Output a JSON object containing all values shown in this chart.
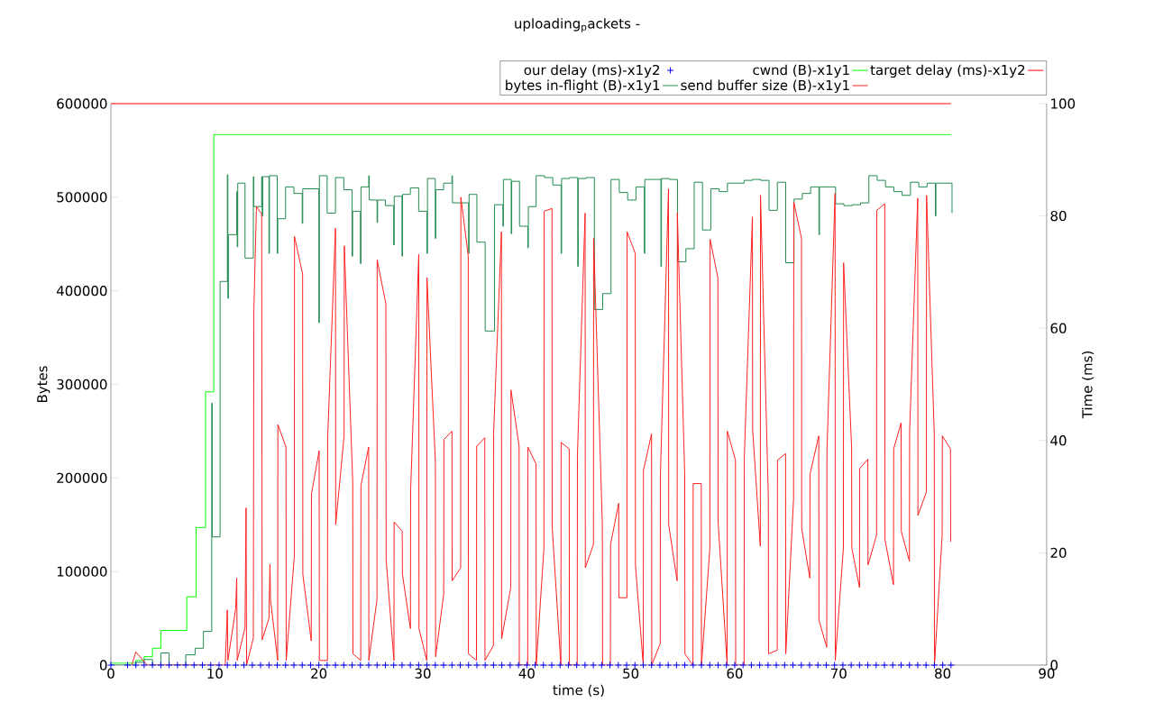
{
  "chart_data": {
    "type": "line",
    "title": "uploading$_{p}$ackets -",
    "xlabel": "time (s)",
    "ylabel": "Bytes",
    "y2label": "Time (ms)",
    "xlim": [
      0,
      90
    ],
    "xticks": [
      0,
      10,
      20,
      30,
      40,
      50,
      60,
      70,
      80,
      90
    ],
    "ylim": [
      0,
      600000
    ],
    "yticks": [
      0,
      100000,
      200000,
      300000,
      400000,
      500000,
      600000
    ],
    "y2lim": [
      0,
      100
    ],
    "y2ticks": [
      0,
      20,
      40,
      60,
      80,
      100
    ],
    "legend": "top right",
    "series": [
      {
        "name": "our delay (ms)-x1y2",
        "type": "scatter",
        "axis": "y2",
        "marker": "cross",
        "color": "#0000ff",
        "x": [
          0,
          1.6,
          2.4,
          3.2,
          4,
          4.8,
          5.6,
          6.4,
          7.2,
          8,
          8.8,
          9.6,
          10.4,
          11.2,
          12,
          12.8,
          13.6,
          14.4,
          15.2,
          16,
          16.8,
          17.6,
          18.4,
          19.2,
          20,
          20.8,
          21.6,
          22.4,
          23.2,
          24,
          24.8,
          25.6,
          26.4,
          27.2,
          28,
          28.8,
          29.6,
          30.4,
          31.2,
          32,
          32.8,
          33.6,
          34.4,
          35.2,
          36,
          36.8,
          37.6,
          38.4,
          39.2,
          40,
          40.8,
          41.6,
          42.4,
          43.2,
          44,
          44.8,
          45.6,
          46.4,
          47.2,
          48,
          48.8,
          49.6,
          50.4,
          51.2,
          52,
          52.8,
          53.6,
          54.4,
          55.2,
          56,
          56.8,
          57.6,
          58.4,
          59.2,
          60,
          60.8,
          61.6,
          62.4,
          63.2,
          64,
          64.8,
          65.6,
          66.4,
          67.2,
          68,
          68.8,
          69.6,
          70.4,
          71.2,
          72,
          72.8,
          73.6,
          74.4,
          75.2,
          76,
          76.8,
          77.6,
          78.4,
          79.2,
          80,
          80.8
        ],
        "values": [
          0,
          0,
          0,
          0,
          0,
          0,
          0,
          0,
          0,
          0,
          0,
          0,
          0,
          0,
          0,
          0,
          0,
          0,
          0,
          0,
          0,
          0,
          0,
          0,
          0,
          0,
          0,
          0,
          0,
          0,
          0,
          0,
          0,
          0,
          0,
          0,
          0,
          0,
          0,
          0,
          0,
          0,
          0,
          0,
          0,
          0,
          0,
          0,
          0,
          0,
          0,
          0,
          0,
          0,
          0,
          0,
          0,
          0,
          0,
          0,
          0,
          0,
          0,
          0,
          0,
          0,
          0,
          0,
          0,
          0,
          0,
          0,
          0,
          0,
          0,
          0,
          0,
          0,
          0,
          0,
          0,
          0,
          0,
          0,
          0,
          0,
          0,
          0,
          0,
          0,
          0,
          0,
          0,
          0,
          0,
          0,
          0,
          0,
          0,
          0,
          0
        ]
      },
      {
        "name": "cwnd (B)-x1y1",
        "type": "step",
        "color": "#00ff00",
        "x": [
          0,
          2.4,
          3.2,
          4.0,
          4.8,
          7.3,
          8.2,
          9.1,
          9.9,
          80.8
        ],
        "values": [
          2000,
          5000,
          9000,
          18000,
          37000,
          73000,
          147000,
          292000,
          567000,
          567000
        ]
      },
      {
        "name": "target delay (ms)-x1y2",
        "type": "line",
        "axis": "y2",
        "color": "#ff0000",
        "x": [
          0,
          80.8
        ],
        "values": [
          100,
          100
        ]
      },
      {
        "name": "bytes in-flight (B)-x1y1",
        "type": "step",
        "color": "#228b50",
        "x": [
          0,
          2.4,
          3.2,
          4.0,
          4.8,
          5.6,
          7.2,
          8.1,
          8.9,
          9.7,
          9.75,
          10.5,
          11.2,
          11.25,
          11.3,
          12.1,
          12.15,
          12.2,
          12.9,
          13.7,
          13.75,
          14.5,
          14.55,
          14.6,
          15.2,
          15.25,
          16.0,
          16.05,
          16.8,
          17.6,
          18.4,
          18.45,
          20.0,
          20.05,
          20.8,
          21.6,
          22.4,
          23.2,
          23.25,
          24.0,
          24.05,
          24.8,
          24.85,
          25.6,
          25.65,
          26.4,
          27.2,
          27.25,
          28.0,
          28.05,
          28.8,
          29.6,
          30.4,
          30.45,
          31.2,
          31.25,
          32.0,
          32.8,
          32.85,
          34.4,
          34.45,
          35.2,
          36.0,
          36.9,
          37.7,
          37.75,
          38.5,
          38.55,
          39.3,
          40.1,
          40.15,
          40.9,
          41.7,
          42.5,
          43.3,
          43.35,
          44.1,
          44.9,
          44.95,
          45.7,
          46.5,
          47.3,
          48.1,
          48.9,
          49.7,
          50.5,
          51.3,
          51.35,
          52.1,
          52.9,
          52.95,
          53.7,
          54.5,
          55.3,
          56.1,
          56.9,
          57.7,
          58.5,
          59.3,
          60.1,
          60.9,
          61.7,
          62.5,
          63.3,
          64.1,
          64.9,
          65.7,
          66.5,
          67.3,
          68.1,
          68.15,
          69.7,
          70.5,
          71.3,
          72.1,
          72.9,
          73.7,
          74.5,
          75.3,
          76.1,
          76.9,
          77.7,
          78.5,
          79.3,
          79.35,
          80.1,
          80.9
        ],
        "values": [
          0,
          3000,
          6000,
          0,
          13000,
          0,
          11000,
          18000,
          36000,
          280000,
          137000,
          410000,
          524000,
          392000,
          460000,
          506000,
          447000,
          515000,
          435000,
          522000,
          490000,
          522000,
          480000,
          522000,
          440000,
          523000,
          440000,
          477000,
          511000,
          504000,
          472000,
          509000,
          366000,
          523000,
          483000,
          521000,
          508000,
          437000,
          485000,
          429000,
          511000,
          523000,
          497000,
          473000,
          497000,
          491000,
          449000,
          501000,
          437000,
          503000,
          510000,
          485000,
          440000,
          520000,
          456000,
          508000,
          515000,
          523000,
          494000,
          440000,
          503000,
          452000,
          357000,
          492000,
          469000,
          519000,
          461000,
          517000,
          469000,
          446000,
          490000,
          523000,
          521000,
          513000,
          440000,
          520000,
          521000,
          426000,
          520000,
          521000,
          380000,
          397000,
          519000,
          505000,
          497000,
          511000,
          440000,
          519000,
          519000,
          426000,
          520000,
          519000,
          431000,
          445000,
          516000,
          465000,
          509000,
          506000,
          515000,
          515000,
          518000,
          519000,
          518000,
          486000,
          516000,
          430000,
          498000,
          504000,
          511000,
          460000,
          511000,
          493000,
          491000,
          492000,
          494000,
          523000,
          518000,
          511000,
          506000,
          502000,
          516000,
          511000,
          515000,
          480000,
          515000,
          515000,
          483000
        ]
      },
      {
        "name": "send buffer size (B)-x1y1",
        "type": "line",
        "color": "#ff2020",
        "x": [
          2.0,
          2.4,
          3.5,
          11.0,
          11.2,
          11.25,
          12.0,
          12.1,
          12.15,
          12.9,
          13.0,
          13.05,
          13.7,
          13.75,
          14.0,
          14.5,
          14.55,
          15.2,
          15.3,
          15.35,
          16.04,
          16.06,
          16.84,
          16.86,
          17.64,
          17.66,
          18.44,
          18.46,
          19.27,
          19.29,
          20.03,
          20.05,
          20.83,
          20.85,
          21.6,
          21.62,
          22.43,
          22.45,
          23.26,
          23.28,
          24.03,
          24.05,
          24.79,
          24.81,
          25.59,
          25.61,
          26.45,
          26.47,
          27.22,
          27.24,
          28.02,
          28.04,
          28.81,
          28.83,
          29.61,
          29.63,
          30.38,
          30.4,
          31.21,
          31.23,
          32.01,
          32.03,
          32.8,
          32.82,
          33.64,
          33.66,
          34.37,
          34.39,
          35.16,
          35.18,
          35.96,
          35.98,
          36.79,
          36.81,
          37.56,
          37.58,
          38.46,
          38.48,
          39.26,
          39.28,
          40.09,
          40.11,
          40.89,
          40.91,
          41.65,
          41.67,
          42.42,
          42.44,
          43.28,
          43.3,
          44.08,
          44.1,
          44.85,
          44.87,
          45.61,
          45.63,
          46.41,
          46.43,
          47.27,
          47.29,
          48.04,
          48.06,
          48.84,
          48.86,
          49.63,
          49.65,
          50.43,
          50.45,
          51.2,
          51.22,
          52.0,
          52.02,
          52.83,
          52.85,
          53.63,
          53.65,
          54.46,
          54.48,
          55.19,
          55.21,
          55.98,
          56.0,
          56.78,
          56.8,
          57.61,
          57.63,
          58.38,
          58.4,
          59.27,
          59.29,
          60.07,
          60.09,
          60.9,
          60.92,
          61.7,
          61.72,
          62.46,
          62.48,
          63.23,
          63.25,
          64.09,
          64.11,
          64.89,
          64.91,
          65.66,
          65.68,
          66.42,
          66.44,
          67.22,
          67.24,
          68.08,
          68.1,
          68.85,
          68.87,
          69.65,
          69.67,
          70.45,
          70.47,
          71.24,
          71.26,
          72.0,
          72.02,
          72.8,
          72.82,
          73.64,
          73.66,
          74.43,
          74.45,
          75.27,
          75.29,
          76.0,
          76.02,
          76.8,
          76.82,
          77.6,
          77.62,
          78.43,
          78.45,
          79.19,
          79.21,
          79.95,
          79.97,
          80.75,
          80.77
        ],
        "values": [
          0,
          14000,
          0,
          0,
          59000,
          5000,
          60000,
          93000,
          5000,
          40000,
          168000,
          0,
          29000,
          380000,
          490000,
          482000,
          27000,
          50000,
          108000,
          70000,
          5000,
          257000,
          233000,
          5000,
          116000,
          458000,
          418000,
          97000,
          26000,
          183000,
          229000,
          5000,
          5000,
          243000,
          467000,
          150000,
          245000,
          448000,
          196000,
          12000,
          5000,
          192000,
          233000,
          5000,
          70000,
          433000,
          386000,
          113000,
          5000,
          153000,
          143000,
          97000,
          39000,
          187000,
          439000,
          39000,
          5000,
          414000,
          217000,
          9000,
          76000,
          241000,
          250000,
          90000,
          104000,
          500000,
          437000,
          12000,
          5000,
          234000,
          243000,
          5000,
          21000,
          248000,
          463000,
          28000,
          83000,
          294000,
          234000,
          0,
          0,
          233000,
          215000,
          0,
          125000,
          485000,
          488000,
          148000,
          0,
          238000,
          231000,
          0,
          0,
          224000,
          483000,
          104000,
          129000,
          456000,
          150000,
          0,
          0,
          129000,
          173000,
          72000,
          72000,
          463000,
          440000,
          107000,
          0,
          208000,
          247000,
          0,
          23000,
          203000,
          509000,
          150000,
          90000,
          483000,
          204000,
          12000,
          0,
          194000,
          194000,
          0,
          125000,
          455000,
          414000,
          153000,
          0,
          250000,
          219000,
          0,
          0,
          222000,
          479000,
          252000,
          127000,
          502000,
          181000,
          12000,
          16000,
          219000,
          226000,
          12000,
          178000,
          495000,
          456000,
          146000,
          93000,
          204000,
          245000,
          48000,
          19000,
          229000,
          504000,
          5000,
          125000,
          430000,
          233000,
          125000,
          83000,
          210000,
          220000,
          107000,
          139000,
          486000,
          493000,
          134000,
          86000,
          231000,
          259000,
          143000,
          111000,
          250000,
          499000,
          160000,
          185000,
          502000,
          247000,
          0,
          139000,
          245000,
          231000,
          132000
        ]
      }
    ]
  }
}
